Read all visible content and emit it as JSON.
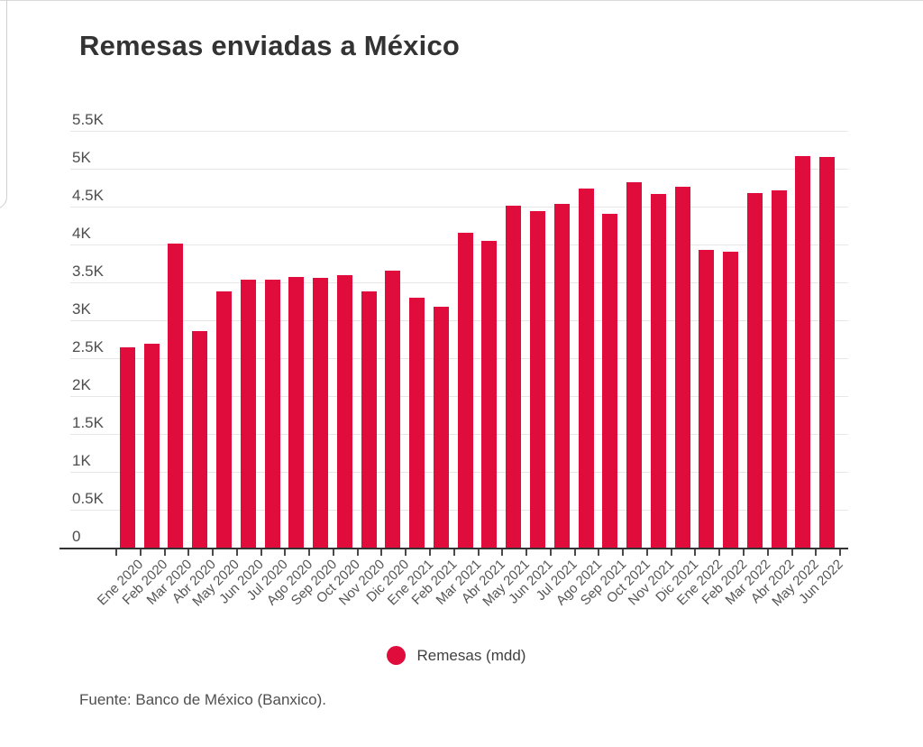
{
  "page": {
    "title": "Remesas enviadas a México",
    "source": "Fuente: Banco de México (Banxico)."
  },
  "legend": {
    "label": "Remesas (mdd)"
  },
  "colors": {
    "bar": "#e00d3c",
    "gridline": "#e7e7e7",
    "axis": "#333333"
  },
  "chart_data": {
    "type": "bar",
    "title": "Remesas enviadas a México",
    "series_name": "Remesas (mdd)",
    "categories": [
      "Ene 2020",
      "Feb 2020",
      "Mar 2020",
      "Abr 2020",
      "May 2020",
      "Jun 2020",
      "Jul 2020",
      "Ago 2020",
      "Sep 2020",
      "Oct 2020",
      "Nov 2020",
      "Dic 2020",
      "Ene 2021",
      "Feb 2021",
      "Mar 2021",
      "Abr 2021",
      "May 2021",
      "Jun 2021",
      "Jul 2021",
      "Ago 2021",
      "Sep 2021",
      "Oct 2021",
      "Nov 2021",
      "Dic 2021",
      "Ene 2022",
      "Feb 2022",
      "Mar 2022",
      "Abr 2022",
      "May 2022",
      "Jun 2022"
    ],
    "values": [
      2642,
      2694,
      4016,
      2861,
      3379,
      3537,
      3532,
      3574,
      3564,
      3598,
      3381,
      3658,
      3298,
      3174,
      4152,
      4048,
      4514,
      4440,
      4540,
      4744,
      4404,
      4819,
      4662,
      4760,
      3931,
      3909,
      4681,
      4718,
      5172,
      5152
    ],
    "xlabel": "",
    "ylabel": "",
    "ylim": [
      0,
      5500
    ],
    "y_tick_labels": [
      "0",
      "0.5K",
      "1K",
      "1.5K",
      "2K",
      "2.5K",
      "3K",
      "3.5K",
      "4K",
      "4.5K",
      "5K",
      "5.5K"
    ],
    "y_tick_values": [
      0,
      500,
      1000,
      1500,
      2000,
      2500,
      3000,
      3500,
      4000,
      4500,
      5000,
      5500
    ],
    "grid": "horizontal",
    "legend_position": "bottom"
  }
}
